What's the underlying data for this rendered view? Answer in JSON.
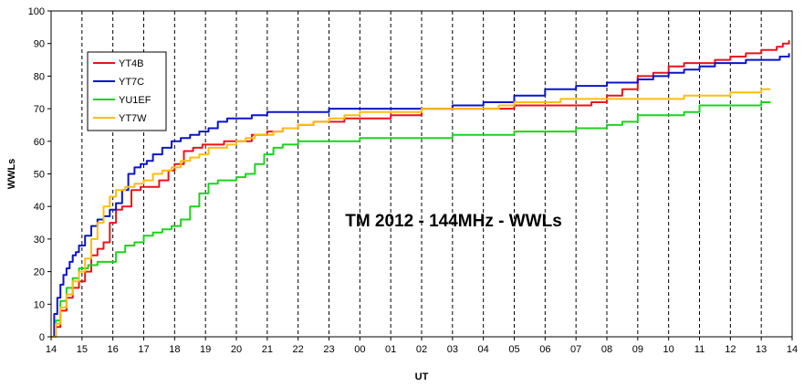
{
  "chart_data": {
    "type": "line",
    "title": "TM 2012 - 144MHz - WWLs",
    "xlabel": "UT",
    "ylabel": "WWLs",
    "ylim": [
      0,
      100
    ],
    "yticks": [
      "0",
      "10",
      "20",
      "30",
      "40",
      "50",
      "60",
      "70",
      "80",
      "90",
      "100"
    ],
    "xlim": [
      0,
      24
    ],
    "xticks": [
      "14",
      "15",
      "16",
      "17",
      "18",
      "19",
      "20",
      "21",
      "22",
      "23",
      "00",
      "01",
      "02",
      "03",
      "04",
      "05",
      "06",
      "07",
      "08",
      "09",
      "10",
      "11",
      "12",
      "13",
      "14"
    ],
    "grid": {
      "vertical": "dashed",
      "horizontal": "none"
    },
    "legend_position": "top-left",
    "step": true,
    "series": [
      {
        "name": "YT4B",
        "color": "#e8141c",
        "x": [
          0.0,
          0.15,
          0.3,
          0.5,
          0.7,
          0.9,
          1.1,
          1.3,
          1.5,
          1.7,
          1.9,
          2.1,
          2.3,
          2.6,
          2.9,
          3.2,
          3.5,
          3.8,
          4.0,
          4.3,
          4.6,
          4.9,
          5.2,
          5.6,
          6.0,
          6.5,
          7.0,
          7.5,
          8.0,
          8.5,
          9.0,
          9.5,
          10.0,
          10.3,
          11.0,
          12.0,
          13.0,
          14.0,
          15.0,
          15.5,
          16.0,
          16.5,
          17.0,
          17.5,
          18.0,
          18.5,
          19.0,
          19.5,
          20.0,
          20.5,
          21.0,
          21.5,
          22.0,
          22.5,
          23.0,
          23.5,
          23.7,
          23.9
        ],
        "y": [
          0,
          3,
          8,
          12,
          15,
          17,
          20,
          25,
          27,
          29,
          35,
          39,
          40,
          45,
          46,
          46,
          48,
          51,
          53,
          57,
          58,
          59,
          59,
          60,
          60,
          62,
          63,
          64,
          65,
          66,
          66,
          67,
          67,
          67,
          68,
          70,
          70,
          70,
          71,
          71,
          71,
          71,
          71,
          72,
          74,
          76,
          80,
          81,
          83,
          84,
          84,
          85,
          86,
          87,
          88,
          89,
          90,
          91
        ]
      },
      {
        "name": "YT7C",
        "color": "#0b14c8",
        "x": [
          0.0,
          0.1,
          0.2,
          0.3,
          0.4,
          0.5,
          0.6,
          0.7,
          0.8,
          0.9,
          1.1,
          1.3,
          1.5,
          1.7,
          1.9,
          2.1,
          2.3,
          2.5,
          2.7,
          2.9,
          3.1,
          3.3,
          3.6,
          3.9,
          4.2,
          4.5,
          4.8,
          5.1,
          5.4,
          5.7,
          6.0,
          6.5,
          7.0,
          7.5,
          8.0,
          9.0,
          10.0,
          11.0,
          12.0,
          13.0,
          14.0,
          15.0,
          16.0,
          16.5,
          17.0,
          17.5,
          18.0,
          18.5,
          19.0,
          19.5,
          20.0,
          20.5,
          21.0,
          21.5,
          22.0,
          22.5,
          23.0,
          23.6,
          23.9
        ],
        "y": [
          0,
          7,
          12,
          16,
          19,
          21,
          23,
          25,
          26,
          28,
          31,
          34,
          36,
          37,
          39,
          41,
          45,
          50,
          52,
          53,
          54,
          56,
          58,
          60,
          61,
          62,
          63,
          64,
          66,
          67,
          67,
          68,
          69,
          69,
          69,
          70,
          70,
          70,
          70,
          71,
          72,
          74,
          76,
          76,
          77,
          77,
          78,
          78,
          79,
          80,
          81,
          82,
          83,
          84,
          84,
          85,
          85,
          86,
          87
        ]
      },
      {
        "name": "YU1EF",
        "color": "#1ed21e",
        "x": [
          0.0,
          0.15,
          0.3,
          0.5,
          0.7,
          0.9,
          1.2,
          1.5,
          1.8,
          2.1,
          2.4,
          2.7,
          3.0,
          3.3,
          3.6,
          3.9,
          4.2,
          4.5,
          4.8,
          5.1,
          5.4,
          5.7,
          6.0,
          6.3,
          6.6,
          6.9,
          7.2,
          7.5,
          8.0,
          9.0,
          10.0,
          11.0,
          12.0,
          13.0,
          14.0,
          15.0,
          16.0,
          17.0,
          17.5,
          18.0,
          18.5,
          19.0,
          19.5,
          20.0,
          20.5,
          21.0,
          21.5,
          22.0,
          22.5,
          23.0,
          23.3
        ],
        "y": [
          0,
          5,
          11,
          15,
          18,
          21,
          22,
          23,
          23,
          26,
          28,
          29,
          31,
          32,
          33,
          34,
          36,
          40,
          44,
          47,
          48,
          48,
          49,
          50,
          53,
          56,
          58,
          59,
          60,
          60,
          61,
          61,
          61,
          62,
          62,
          63,
          63,
          64,
          64,
          65,
          66,
          68,
          68,
          68,
          69,
          71,
          71,
          71,
          71,
          72,
          72
        ]
      },
      {
        "name": "YT7W",
        "color": "#fcbd0f",
        "x": [
          0.0,
          0.15,
          0.3,
          0.5,
          0.7,
          0.9,
          1.1,
          1.3,
          1.5,
          1.7,
          1.9,
          2.1,
          2.4,
          2.7,
          3.0,
          3.3,
          3.6,
          3.9,
          4.2,
          4.5,
          4.8,
          5.1,
          5.4,
          5.7,
          6.0,
          6.3,
          6.6,
          6.9,
          7.2,
          7.5,
          8.0,
          8.5,
          9.0,
          9.5,
          10.0,
          11.0,
          12.0,
          13.0,
          14.0,
          14.5,
          15.0,
          15.5,
          16.0,
          16.5,
          17.0,
          17.5,
          18.0,
          19.0,
          20.0,
          20.5,
          21.0,
          21.5,
          22.0,
          22.5,
          23.0,
          23.3
        ],
        "y": [
          0,
          4,
          9,
          13,
          17,
          20,
          24,
          30,
          35,
          40,
          43,
          45,
          46,
          47,
          48,
          50,
          51,
          52,
          54,
          55,
          56,
          58,
          58,
          59,
          60,
          61,
          62,
          62,
          63,
          64,
          65,
          66,
          67,
          68,
          69,
          69,
          70,
          70,
          70,
          71,
          72,
          72,
          72,
          73,
          73,
          73,
          73,
          73,
          73,
          74,
          74,
          74,
          75,
          75,
          76,
          76
        ]
      }
    ]
  }
}
